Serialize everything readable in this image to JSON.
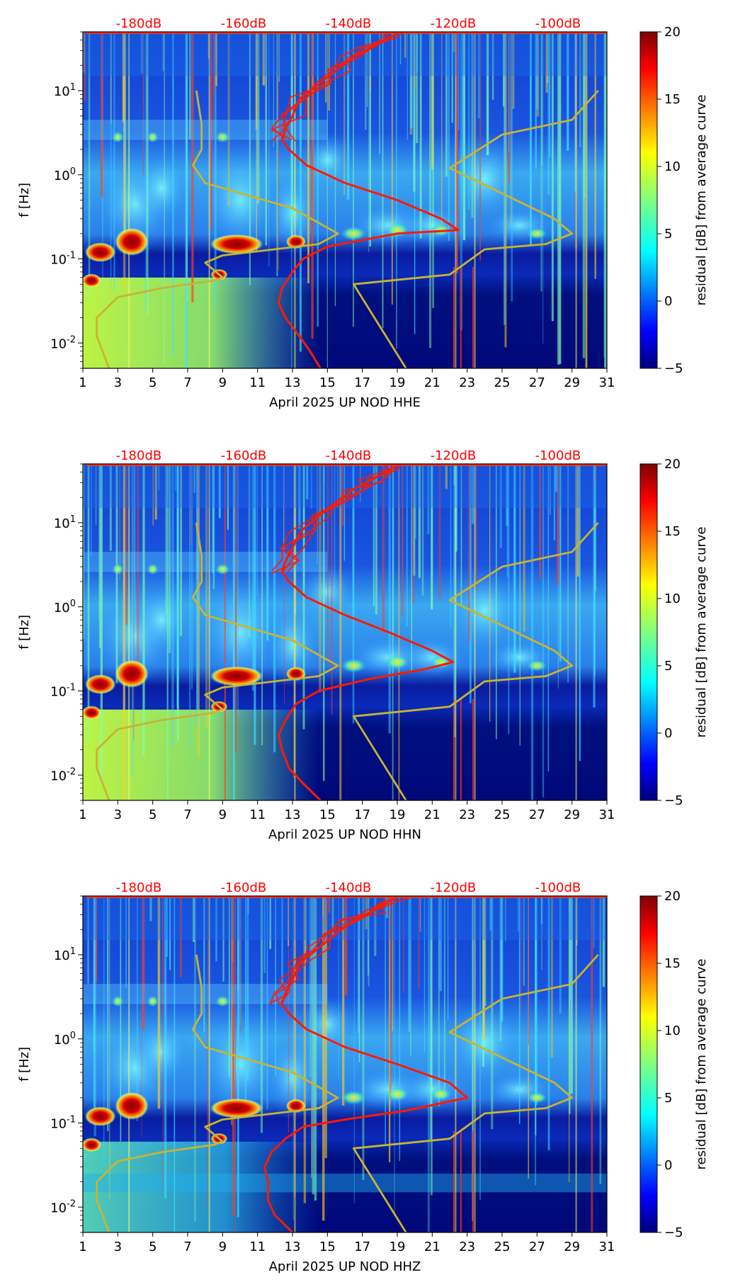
{
  "figure": {
    "colors": {
      "db_labels": "#ff0000",
      "curve": "#ff1a00",
      "model": "#c8b432",
      "axis": "#000000"
    },
    "colorbar_label": "residual [dB] from average curve",
    "colormap": "jet"
  },
  "chart_data": [
    {
      "type": "heatmap",
      "title": "April 2025 UP NOD  HHE",
      "xlabel": "April 2025 UP NOD  HHE",
      "ylabel": "f [Hz]",
      "xlim": [
        1,
        31
      ],
      "ylim": [
        0.005,
        50
      ],
      "yscale": "log",
      "x_ticks": [
        "1",
        "3",
        "5",
        "7",
        "9",
        "11",
        "13",
        "15",
        "17",
        "19",
        "21",
        "23",
        "25",
        "27",
        "29",
        "31"
      ],
      "y_ticks": [
        "10^-2",
        "10^-1",
        "10^0",
        "10^1"
      ],
      "top_labels": [
        "-180dB",
        "-160dB",
        "-140dB",
        "-120dB",
        "-100dB"
      ],
      "top_label_days": [
        4.2,
        10.2,
        16.2,
        22.2,
        28.2
      ],
      "colorbar": {
        "min": -5,
        "max": 20,
        "ticks": [
          "20",
          "15",
          "10",
          "5",
          "0",
          "−5"
        ],
        "label": "residual [dB] from average curve"
      },
      "series": [
        {
          "name": "average PSD curve",
          "color": "red",
          "points": [
            [
              14.6,
              0.005
            ],
            [
              14.0,
              0.008
            ],
            [
              13.4,
              0.012
            ],
            [
              12.6,
              0.02
            ],
            [
              12.2,
              0.03
            ],
            [
              12.4,
              0.045
            ],
            [
              13.0,
              0.07
            ],
            [
              13.6,
              0.1
            ],
            [
              15.0,
              0.14
            ],
            [
              19.0,
              0.2
            ],
            [
              22.5,
              0.22
            ],
            [
              21.5,
              0.3
            ],
            [
              19.0,
              0.5
            ],
            [
              16.0,
              0.8
            ],
            [
              13.8,
              1.3
            ],
            [
              12.8,
              2.0
            ],
            [
              12.4,
              2.6
            ],
            [
              12.6,
              3.5
            ],
            [
              13.0,
              5
            ],
            [
              13.4,
              8
            ],
            [
              14.5,
              12
            ],
            [
              15.6,
              18
            ],
            [
              16.5,
              25
            ],
            [
              17.5,
              32
            ],
            [
              18.5,
              42
            ],
            [
              19.0,
              48
            ]
          ]
        },
        {
          "name": "noise model (left)",
          "color": "yellow",
          "points": [
            [
              2.5,
              0.005
            ],
            [
              1.8,
              0.012
            ],
            [
              1.8,
              0.02
            ],
            [
              3.0,
              0.035
            ],
            [
              5.5,
              0.045
            ],
            [
              8.5,
              0.055
            ],
            [
              9.0,
              0.06
            ],
            [
              8.0,
              0.09
            ],
            [
              9.0,
              0.11
            ],
            [
              14.5,
              0.15
            ],
            [
              15.6,
              0.2
            ],
            [
              13.0,
              0.4
            ],
            [
              8.0,
              0.8
            ],
            [
              7.3,
              1.3
            ],
            [
              7.8,
              2.0
            ],
            [
              7.8,
              4.0
            ],
            [
              7.5,
              10
            ]
          ]
        },
        {
          "name": "noise model (right)",
          "color": "yellow",
          "points": [
            [
              19.5,
              0.005
            ],
            [
              16.5,
              0.05
            ],
            [
              22.0,
              0.065
            ],
            [
              24.0,
              0.13
            ],
            [
              27.5,
              0.15
            ],
            [
              29.0,
              0.2
            ],
            [
              28.0,
              0.3
            ],
            [
              22.0,
              1.2
            ],
            [
              25.0,
              3.0
            ],
            [
              29.0,
              4.5
            ],
            [
              30.5,
              10
            ]
          ]
        }
      ]
    },
    {
      "type": "heatmap",
      "title": "April 2025 UP NOD  HHN",
      "xlabel": "April 2025 UP NOD  HHN",
      "ylabel": "f [Hz]",
      "xlim": [
        1,
        31
      ],
      "ylim": [
        0.005,
        50
      ],
      "yscale": "log",
      "x_ticks": [
        "1",
        "3",
        "5",
        "7",
        "9",
        "11",
        "13",
        "15",
        "17",
        "19",
        "21",
        "23",
        "25",
        "27",
        "29",
        "31"
      ],
      "y_ticks": [
        "10^-2",
        "10^-1",
        "10^0",
        "10^1"
      ],
      "top_labels": [
        "-180dB",
        "-160dB",
        "-140dB",
        "-120dB",
        "-100dB"
      ],
      "top_label_days": [
        4.2,
        10.2,
        16.2,
        22.2,
        28.2
      ],
      "colorbar": {
        "min": -5,
        "max": 20,
        "ticks": [
          "20",
          "15",
          "10",
          "5",
          "0",
          "−5"
        ],
        "label": "residual [dB] from average curve"
      },
      "series": [
        {
          "name": "average PSD curve",
          "color": "red",
          "points": [
            [
              14.6,
              0.005
            ],
            [
              13.6,
              0.008
            ],
            [
              12.8,
              0.012
            ],
            [
              12.4,
              0.02
            ],
            [
              12.2,
              0.03
            ],
            [
              12.6,
              0.045
            ],
            [
              13.2,
              0.07
            ],
            [
              14.5,
              0.1
            ],
            [
              17.5,
              0.14
            ],
            [
              20.5,
              0.18
            ],
            [
              22.2,
              0.22
            ],
            [
              21.0,
              0.3
            ],
            [
              18.5,
              0.5
            ],
            [
              16.0,
              0.8
            ],
            [
              13.8,
              1.3
            ],
            [
              12.8,
              2.0
            ],
            [
              12.4,
              2.6
            ],
            [
              12.6,
              3.5
            ],
            [
              13.0,
              5
            ],
            [
              13.5,
              8
            ],
            [
              14.5,
              12
            ],
            [
              15.6,
              18
            ],
            [
              16.5,
              25
            ],
            [
              17.5,
              32
            ],
            [
              18.5,
              42
            ],
            [
              19.0,
              48
            ]
          ]
        },
        {
          "name": "noise model (left)",
          "color": "yellow",
          "points": [
            [
              2.5,
              0.005
            ],
            [
              1.8,
              0.012
            ],
            [
              1.8,
              0.02
            ],
            [
              3.0,
              0.035
            ],
            [
              5.5,
              0.045
            ],
            [
              8.5,
              0.055
            ],
            [
              9.0,
              0.06
            ],
            [
              8.0,
              0.09
            ],
            [
              9.0,
              0.11
            ],
            [
              14.5,
              0.15
            ],
            [
              15.6,
              0.2
            ],
            [
              13.0,
              0.4
            ],
            [
              8.0,
              0.8
            ],
            [
              7.3,
              1.3
            ],
            [
              7.8,
              2.0
            ],
            [
              7.8,
              4.0
            ],
            [
              7.5,
              10
            ]
          ]
        },
        {
          "name": "noise model (right)",
          "color": "yellow",
          "points": [
            [
              19.5,
              0.005
            ],
            [
              16.5,
              0.05
            ],
            [
              22.0,
              0.065
            ],
            [
              24.0,
              0.13
            ],
            [
              27.5,
              0.15
            ],
            [
              29.0,
              0.2
            ],
            [
              28.0,
              0.3
            ],
            [
              22.0,
              1.2
            ],
            [
              25.0,
              3.0
            ],
            [
              29.0,
              4.5
            ],
            [
              30.5,
              10
            ]
          ]
        }
      ]
    },
    {
      "type": "heatmap",
      "title": "April 2025 UP NOD  HHZ",
      "xlabel": "April 2025 UP NOD  HHZ",
      "ylabel": "f [Hz]",
      "xlim": [
        1,
        31
      ],
      "ylim": [
        0.005,
        50
      ],
      "yscale": "log",
      "x_ticks": [
        "1",
        "3",
        "5",
        "7",
        "9",
        "11",
        "13",
        "15",
        "17",
        "19",
        "21",
        "23",
        "25",
        "27",
        "29",
        "31"
      ],
      "y_ticks": [
        "10^-2",
        "10^-1",
        "10^0",
        "10^1"
      ],
      "top_labels": [
        "-180dB",
        "-160dB",
        "-140dB",
        "-120dB",
        "-100dB"
      ],
      "top_label_days": [
        4.2,
        10.2,
        16.2,
        22.2,
        28.2
      ],
      "colorbar": {
        "min": -5,
        "max": 20,
        "ticks": [
          "20",
          "15",
          "10",
          "5",
          "0",
          "−5"
        ],
        "label": "residual [dB] from average curve"
      },
      "series": [
        {
          "name": "average PSD curve",
          "color": "red",
          "points": [
            [
              13.0,
              0.005
            ],
            [
              12.0,
              0.008
            ],
            [
              11.6,
              0.012
            ],
            [
              11.6,
              0.02
            ],
            [
              11.4,
              0.03
            ],
            [
              11.8,
              0.045
            ],
            [
              12.6,
              0.065
            ],
            [
              13.6,
              0.09
            ],
            [
              16.0,
              0.11
            ],
            [
              19.5,
              0.14
            ],
            [
              23.0,
              0.2
            ],
            [
              22.0,
              0.3
            ],
            [
              19.0,
              0.5
            ],
            [
              16.0,
              0.8
            ],
            [
              13.8,
              1.3
            ],
            [
              12.8,
              2.0
            ],
            [
              12.4,
              2.6
            ],
            [
              12.6,
              3.5
            ],
            [
              13.0,
              5
            ],
            [
              13.4,
              8
            ],
            [
              14.5,
              12
            ],
            [
              15.5,
              18
            ],
            [
              16.5,
              25
            ],
            [
              17.5,
              32
            ],
            [
              18.5,
              42
            ],
            [
              19.0,
              48
            ]
          ]
        },
        {
          "name": "noise model (left)",
          "color": "yellow",
          "points": [
            [
              2.5,
              0.005
            ],
            [
              1.8,
              0.012
            ],
            [
              1.8,
              0.02
            ],
            [
              3.0,
              0.035
            ],
            [
              5.5,
              0.045
            ],
            [
              8.5,
              0.055
            ],
            [
              9.0,
              0.06
            ],
            [
              8.0,
              0.09
            ],
            [
              9.0,
              0.11
            ],
            [
              14.5,
              0.15
            ],
            [
              15.6,
              0.2
            ],
            [
              13.0,
              0.4
            ],
            [
              8.0,
              0.8
            ],
            [
              7.3,
              1.3
            ],
            [
              7.8,
              2.0
            ],
            [
              7.8,
              4.0
            ],
            [
              7.5,
              10
            ]
          ]
        },
        {
          "name": "noise model (right)",
          "color": "yellow",
          "points": [
            [
              19.5,
              0.005
            ],
            [
              16.5,
              0.05
            ],
            [
              22.0,
              0.065
            ],
            [
              24.0,
              0.13
            ],
            [
              27.5,
              0.15
            ],
            [
              29.0,
              0.2
            ],
            [
              28.0,
              0.3
            ],
            [
              22.0,
              1.2
            ],
            [
              25.0,
              3.0
            ],
            [
              29.0,
              4.5
            ],
            [
              30.5,
              10
            ]
          ]
        }
      ]
    }
  ]
}
